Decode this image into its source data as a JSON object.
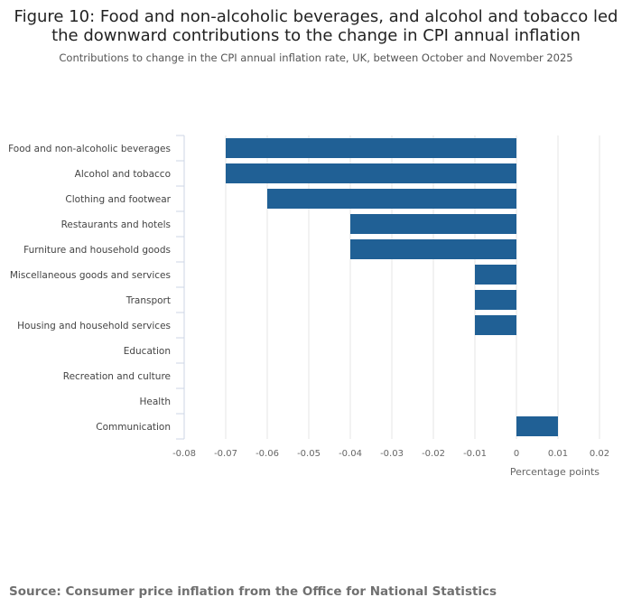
{
  "title": "Figure 10: Food and non-alcoholic beverages, and alcohol and tobacco led the downward contributions to the change in CPI annual inflation",
  "subtitle": "Contributions to change in the CPI annual inflation rate, UK, between October and November 2025",
  "source": "Source: Consumer price inflation from the Office for National Statistics",
  "chart_data": {
    "type": "bar",
    "orientation": "horizontal",
    "categories": [
      "Food and non-alcoholic beverages",
      "Alcohol and tobacco",
      "Clothing and footwear",
      "Restaurants and hotels",
      "Furniture and household goods",
      "Miscellaneous goods and services",
      "Transport",
      "Housing and household services",
      "Education",
      "Recreation and culture",
      "Health",
      "Communication"
    ],
    "values": [
      -0.07,
      -0.07,
      -0.06,
      -0.04,
      -0.04,
      -0.01,
      -0.01,
      -0.01,
      0,
      0,
      0,
      0.01
    ],
    "xlabel": "Percentage points",
    "xlim": [
      -0.08,
      0.02
    ],
    "xticks": [
      "-0.08",
      "-0.07",
      "-0.06",
      "-0.05",
      "-0.04",
      "-0.03",
      "-0.02",
      "-0.01",
      "0",
      "0.01",
      "0.02"
    ],
    "grid": true,
    "bar_color": "#206095"
  }
}
